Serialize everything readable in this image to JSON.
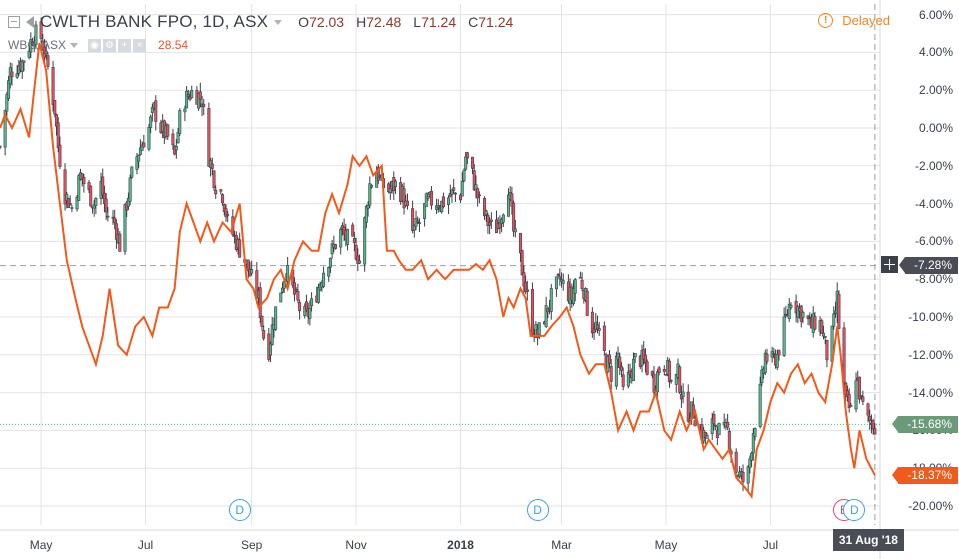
{
  "header": {
    "title": "CWLTH BANK FPO, 1D, ASX",
    "open_label": "O",
    "open": "72.03",
    "high_label": "H",
    "high": "72.48",
    "low_label": "L",
    "low": "71.24",
    "close_label": "C",
    "close": "71.24",
    "delayed": "Delayed"
  },
  "compare": {
    "symbol": "WBC, ASX",
    "value": "28.54"
  },
  "tags": {
    "crosshair": "-7.28%",
    "main": "-15.68%",
    "compare": "-18.37%",
    "date": "31 Aug '18"
  },
  "markers": [
    {
      "letter": "D",
      "month": "Aug",
      "kind": "dividend"
    },
    {
      "letter": "D",
      "month": "Feb",
      "kind": "dividend"
    },
    {
      "letter": "E",
      "month": "Aug",
      "kind": "earnings"
    },
    {
      "letter": "D",
      "month": "Aug",
      "kind": "dividend"
    }
  ],
  "colors": {
    "up": "#53b987",
    "down": "#eb4d5c",
    "candle_outline": "#3a3f4a",
    "compare_line": "#f05a1a",
    "grid": "#e1e3e6",
    "marker_d": "#3aa3e3",
    "marker_e": "#e0456b"
  },
  "chart_data": {
    "type": "line",
    "title": "CWLTH BANK FPO, 1D, ASX",
    "xlabel": "",
    "ylabel": "",
    "y_unit": "%",
    "ylim": [
      -21,
      6.6
    ],
    "y_ticks": [
      "6.00%",
      "4.00%",
      "2.00%",
      "0.00%",
      "-2.00%",
      "-4.00%",
      "-6.00%",
      "-8.00%",
      "-10.00%",
      "-12.00%",
      "-14.00%",
      "-16.00%",
      "-18.00%",
      "-20.00%"
    ],
    "x_ticks": [
      "May",
      "Jul",
      "Sep",
      "Nov",
      "2018",
      "Mar",
      "May",
      "Jul"
    ],
    "x_tick_dates": [
      "2017-05-01",
      "2017-07-01",
      "2017-09-01",
      "2017-11-01",
      "2018-01-01",
      "2018-03-01",
      "2018-05-01",
      "2018-07-01"
    ],
    "x_range": [
      "2017-04-07",
      "2018-09-03"
    ],
    "crosshair": {
      "date": "2018-08-31",
      "value": -7.28
    },
    "series": [
      {
        "name": "CWLTH BANK FPO",
        "style": "candlestick",
        "points": [
          [
            "2017-04-07",
            -1.0
          ],
          [
            "2017-04-13",
            3.0
          ],
          [
            "2017-04-20",
            3.5
          ],
          [
            "2017-04-27",
            5.0
          ],
          [
            "2017-05-01",
            4.8
          ],
          [
            "2017-05-05",
            3.2
          ],
          [
            "2017-05-09",
            1.0
          ],
          [
            "2017-05-11",
            -1.0
          ],
          [
            "2017-05-15",
            -3.5
          ],
          [
            "2017-05-19",
            -4.2
          ],
          [
            "2017-05-24",
            -2.5
          ],
          [
            "2017-05-29",
            -3.5
          ],
          [
            "2017-06-01",
            -4.0
          ],
          [
            "2017-06-05",
            -3.0
          ],
          [
            "2017-06-08",
            -4.5
          ],
          [
            "2017-06-13",
            -5.0
          ],
          [
            "2017-06-16",
            -6.2
          ],
          [
            "2017-06-20",
            -4.0
          ],
          [
            "2017-06-24",
            -2.0
          ],
          [
            "2017-06-28",
            -1.0
          ],
          [
            "2017-07-03",
            0.0
          ],
          [
            "2017-07-06",
            1.0
          ],
          [
            "2017-07-10",
            0.0
          ],
          [
            "2017-07-14",
            -0.5
          ],
          [
            "2017-07-18",
            -1.5
          ],
          [
            "2017-07-21",
            0.5
          ],
          [
            "2017-07-24",
            1.5
          ],
          [
            "2017-07-29",
            2.0
          ],
          [
            "2017-08-03",
            1.5
          ],
          [
            "2017-08-07",
            -1.5
          ],
          [
            "2017-08-11",
            -3.0
          ],
          [
            "2017-08-15",
            -3.5
          ],
          [
            "2017-08-18",
            -5.0
          ],
          [
            "2017-08-23",
            -6.0
          ],
          [
            "2017-08-28",
            -7.0
          ],
          [
            "2017-09-01",
            -8.0
          ],
          [
            "2017-09-05",
            -9.0
          ],
          [
            "2017-09-08",
            -11.0
          ],
          [
            "2017-09-11",
            -11.7
          ],
          [
            "2017-09-14",
            -10.0
          ],
          [
            "2017-09-18",
            -8.5
          ],
          [
            "2017-09-21",
            -7.5
          ],
          [
            "2017-09-26",
            -8.8
          ],
          [
            "2017-09-30",
            -9.8
          ],
          [
            "2017-10-03",
            -10.0
          ],
          [
            "2017-10-08",
            -9.0
          ],
          [
            "2017-10-13",
            -7.5
          ],
          [
            "2017-10-18",
            -6.5
          ],
          [
            "2017-10-23",
            -5.5
          ],
          [
            "2017-10-28",
            -6.0
          ],
          [
            "2017-11-01",
            -6.5
          ],
          [
            "2017-11-03",
            -7.0
          ],
          [
            "2017-11-06",
            -5.0
          ],
          [
            "2017-11-09",
            -3.0
          ],
          [
            "2017-11-13",
            -2.2
          ],
          [
            "2017-11-16",
            -3.0
          ],
          [
            "2017-11-20",
            -3.3
          ],
          [
            "2017-11-24",
            -3.0
          ],
          [
            "2017-11-28",
            -3.5
          ],
          [
            "2017-12-01",
            -4.5
          ],
          [
            "2017-12-04",
            -5.5
          ],
          [
            "2017-12-08",
            -5.0
          ],
          [
            "2017-12-12",
            -4.0
          ],
          [
            "2017-12-16",
            -3.8
          ],
          [
            "2017-12-21",
            -4.0
          ],
          [
            "2017-12-27",
            -3.5
          ],
          [
            "2018-01-01",
            -3.5
          ],
          [
            "2018-01-04",
            -1.5
          ],
          [
            "2018-01-08",
            -2.5
          ],
          [
            "2018-01-12",
            -4.0
          ],
          [
            "2018-01-17",
            -5.0
          ],
          [
            "2018-01-21",
            -5.5
          ],
          [
            "2018-01-25",
            -4.5
          ],
          [
            "2018-01-29",
            -3.0
          ],
          [
            "2018-02-01",
            -5.5
          ],
          [
            "2018-02-05",
            -7.0
          ],
          [
            "2018-02-08",
            -8.5
          ],
          [
            "2018-02-12",
            -10.5
          ],
          [
            "2018-02-15",
            -11.0
          ],
          [
            "2018-02-19",
            -10.0
          ],
          [
            "2018-02-23",
            -9.0
          ],
          [
            "2018-02-28",
            -8.0
          ],
          [
            "2018-03-03",
            -8.5
          ],
          [
            "2018-03-07",
            -9.0
          ],
          [
            "2018-03-10",
            -7.5
          ],
          [
            "2018-03-14",
            -8.5
          ],
          [
            "2018-03-18",
            -10.5
          ],
          [
            "2018-03-21",
            -10.5
          ],
          [
            "2018-03-26",
            -12.0
          ],
          [
            "2018-03-30",
            -13.0
          ],
          [
            "2018-04-03",
            -12.0
          ],
          [
            "2018-04-06",
            -14.0
          ],
          [
            "2018-04-10",
            -13.0
          ],
          [
            "2018-04-14",
            -12.0
          ],
          [
            "2018-04-19",
            -12.5
          ],
          [
            "2018-04-24",
            -13.5
          ],
          [
            "2018-04-28",
            -12.5
          ],
          [
            "2018-05-01",
            -12.5
          ],
          [
            "2018-05-05",
            -13.8
          ],
          [
            "2018-05-08",
            -13.0
          ],
          [
            "2018-05-12",
            -15.0
          ],
          [
            "2018-05-17",
            -15.0
          ],
          [
            "2018-05-21",
            -16.0
          ],
          [
            "2018-05-25",
            -16.5
          ],
          [
            "2018-05-29",
            -15.5
          ],
          [
            "2018-06-02",
            -16.2
          ],
          [
            "2018-06-06",
            -16.0
          ],
          [
            "2018-06-10",
            -18.0
          ],
          [
            "2018-06-14",
            -18.5
          ],
          [
            "2018-06-17",
            -19.0
          ],
          [
            "2018-06-21",
            -16.0
          ],
          [
            "2018-06-25",
            -14.0
          ],
          [
            "2018-06-28",
            -12.0
          ],
          [
            "2018-07-01",
            -12.5
          ],
          [
            "2018-07-05",
            -12.0
          ],
          [
            "2018-07-09",
            -10.5
          ],
          [
            "2018-07-13",
            -9.0
          ],
          [
            "2018-07-17",
            -9.5
          ],
          [
            "2018-07-21",
            -10.0
          ],
          [
            "2018-07-25",
            -10.5
          ],
          [
            "2018-07-29",
            -10.0
          ],
          [
            "2018-08-01",
            -11.0
          ],
          [
            "2018-08-03",
            -12.0
          ],
          [
            "2018-08-06",
            -11.0
          ],
          [
            "2018-08-09",
            -9.0
          ],
          [
            "2018-08-11",
            -12.0
          ],
          [
            "2018-08-14",
            -14.5
          ],
          [
            "2018-08-17",
            -15.0
          ],
          [
            "2018-08-20",
            -13.0
          ],
          [
            "2018-08-23",
            -14.5
          ],
          [
            "2018-08-27",
            -15.5
          ],
          [
            "2018-08-31",
            -15.68
          ]
        ]
      },
      {
        "name": "WBC, ASX",
        "style": "line",
        "points": [
          [
            "2017-04-07",
            0.0
          ],
          [
            "2017-04-10",
            0.7
          ],
          [
            "2017-04-14",
            0.0
          ],
          [
            "2017-04-19",
            1.0
          ],
          [
            "2017-04-24",
            -0.5
          ],
          [
            "2017-04-27",
            2.0
          ],
          [
            "2017-04-30",
            4.5
          ],
          [
            "2017-05-04",
            3.0
          ],
          [
            "2017-05-08",
            -1.0
          ],
          [
            "2017-05-12",
            -4.0
          ],
          [
            "2017-05-16",
            -7.0
          ],
          [
            "2017-05-21",
            -9.0
          ],
          [
            "2017-05-25",
            -10.5
          ],
          [
            "2017-05-29",
            -11.5
          ],
          [
            "2017-06-02",
            -12.5
          ],
          [
            "2017-06-06",
            -11.0
          ],
          [
            "2017-06-10",
            -8.5
          ],
          [
            "2017-06-15",
            -11.5
          ],
          [
            "2017-06-20",
            -12.0
          ],
          [
            "2017-06-25",
            -10.5
          ],
          [
            "2017-06-30",
            -10.0
          ],
          [
            "2017-07-05",
            -11.0
          ],
          [
            "2017-07-09",
            -9.5
          ],
          [
            "2017-07-14",
            -9.5
          ],
          [
            "2017-07-18",
            -8.5
          ],
          [
            "2017-07-21",
            -5.5
          ],
          [
            "2017-07-25",
            -4.0
          ],
          [
            "2017-07-29",
            -5.0
          ],
          [
            "2017-08-02",
            -6.0
          ],
          [
            "2017-08-06",
            -5.0
          ],
          [
            "2017-08-10",
            -6.0
          ],
          [
            "2017-08-15",
            -5.0
          ],
          [
            "2017-08-20",
            -5.5
          ],
          [
            "2017-08-25",
            -4.0
          ],
          [
            "2017-08-29",
            -8.0
          ],
          [
            "2017-09-02",
            -8.5
          ],
          [
            "2017-09-05",
            -9.5
          ],
          [
            "2017-09-10",
            -9.0
          ],
          [
            "2017-09-14",
            -8.0
          ],
          [
            "2017-09-18",
            -7.5
          ],
          [
            "2017-09-22",
            -8.5
          ],
          [
            "2017-09-26",
            -7.0
          ],
          [
            "2017-10-01",
            -6.0
          ],
          [
            "2017-10-06",
            -6.5
          ],
          [
            "2017-10-10",
            -6.5
          ],
          [
            "2017-10-14",
            -4.5
          ],
          [
            "2017-10-18",
            -3.5
          ],
          [
            "2017-10-22",
            -4.5
          ],
          [
            "2017-10-27",
            -3.0
          ],
          [
            "2017-10-30",
            -1.5
          ],
          [
            "2017-11-03",
            -2.0
          ],
          [
            "2017-11-07",
            -1.5
          ],
          [
            "2017-11-11",
            -2.5
          ],
          [
            "2017-11-16",
            -2.0
          ],
          [
            "2017-11-19",
            -6.5
          ],
          [
            "2017-11-23",
            -6.5
          ],
          [
            "2017-11-26",
            -7.0
          ],
          [
            "2017-11-30",
            -7.5
          ],
          [
            "2017-12-04",
            -7.5
          ],
          [
            "2017-12-09",
            -7.0
          ],
          [
            "2017-12-13",
            -8.0
          ],
          [
            "2017-12-18",
            -7.5
          ],
          [
            "2017-12-23",
            -8.0
          ],
          [
            "2017-12-28",
            -7.5
          ],
          [
            "2018-01-02",
            -7.5
          ],
          [
            "2018-01-06",
            -7.5
          ],
          [
            "2018-01-10",
            -7.2
          ],
          [
            "2018-01-14",
            -7.5
          ],
          [
            "2018-01-18",
            -7.0
          ],
          [
            "2018-01-22",
            -8.0
          ],
          [
            "2018-01-26",
            -10.0
          ],
          [
            "2018-01-29",
            -9.0
          ],
          [
            "2018-02-01",
            -9.5
          ],
          [
            "2018-02-05",
            -8.5
          ],
          [
            "2018-02-08",
            -9.0
          ],
          [
            "2018-02-11",
            -11.0
          ],
          [
            "2018-02-15",
            -11.0
          ],
          [
            "2018-02-19",
            -11.0
          ],
          [
            "2018-02-23",
            -10.5
          ],
          [
            "2018-02-28",
            -10.0
          ],
          [
            "2018-03-04",
            -9.5
          ],
          [
            "2018-03-08",
            -10.5
          ],
          [
            "2018-03-12",
            -12.0
          ],
          [
            "2018-03-17",
            -13.0
          ],
          [
            "2018-03-21",
            -12.5
          ],
          [
            "2018-03-26",
            -12.5
          ],
          [
            "2018-03-30",
            -14.0
          ],
          [
            "2018-04-03",
            -16.0
          ],
          [
            "2018-04-08",
            -15.0
          ],
          [
            "2018-04-12",
            -16.0
          ],
          [
            "2018-04-16",
            -15.0
          ],
          [
            "2018-04-21",
            -15.0
          ],
          [
            "2018-04-25",
            -14.0
          ],
          [
            "2018-04-30",
            -16.0
          ],
          [
            "2018-05-04",
            -16.5
          ],
          [
            "2018-05-09",
            -15.0
          ],
          [
            "2018-05-13",
            -16.0
          ],
          [
            "2018-05-18",
            -15.0
          ],
          [
            "2018-05-23",
            -17.0
          ],
          [
            "2018-05-26",
            -16.5
          ],
          [
            "2018-05-30",
            -17.0
          ],
          [
            "2018-06-03",
            -17.5
          ],
          [
            "2018-06-07",
            -17.0
          ],
          [
            "2018-06-11",
            -18.5
          ],
          [
            "2018-06-16",
            -19.0
          ],
          [
            "2018-06-20",
            -19.5
          ],
          [
            "2018-06-23",
            -17.0
          ],
          [
            "2018-06-27",
            -16.0
          ],
          [
            "2018-07-01",
            -14.5
          ],
          [
            "2018-07-05",
            -13.5
          ],
          [
            "2018-07-09",
            -14.0
          ],
          [
            "2018-07-13",
            -13.0
          ],
          [
            "2018-07-17",
            -12.5
          ],
          [
            "2018-07-21",
            -13.5
          ],
          [
            "2018-07-25",
            -13.0
          ],
          [
            "2018-07-29",
            -14.0
          ],
          [
            "2018-08-02",
            -14.5
          ],
          [
            "2018-08-06",
            -12.5
          ],
          [
            "2018-08-09",
            -10.5
          ],
          [
            "2018-08-11",
            -12.0
          ],
          [
            "2018-08-14",
            -15.0
          ],
          [
            "2018-08-17",
            -17.0
          ],
          [
            "2018-08-19",
            -18.0
          ],
          [
            "2018-08-22",
            -16.0
          ],
          [
            "2018-08-26",
            -17.5
          ],
          [
            "2018-08-31",
            -18.37
          ]
        ]
      }
    ]
  }
}
